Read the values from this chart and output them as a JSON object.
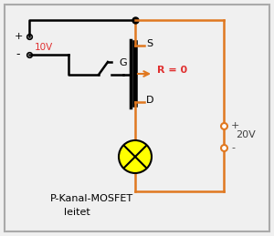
{
  "bg_color": "#f0f0f0",
  "border_color": "#aaaaaa",
  "wire_color_black": "#000000",
  "wire_color_orange": "#e07820",
  "text_color_red": "#e03030",
  "text_color_black": "#404040",
  "title_line1": "P-Kanal-MOSFET",
  "title_line2": "leitet",
  "label_10V": "10V",
  "label_20V": "20V",
  "label_R": "R = 0",
  "label_G": "G",
  "label_S": "S",
  "label_D": "D",
  "plus": "+",
  "minus": "-"
}
